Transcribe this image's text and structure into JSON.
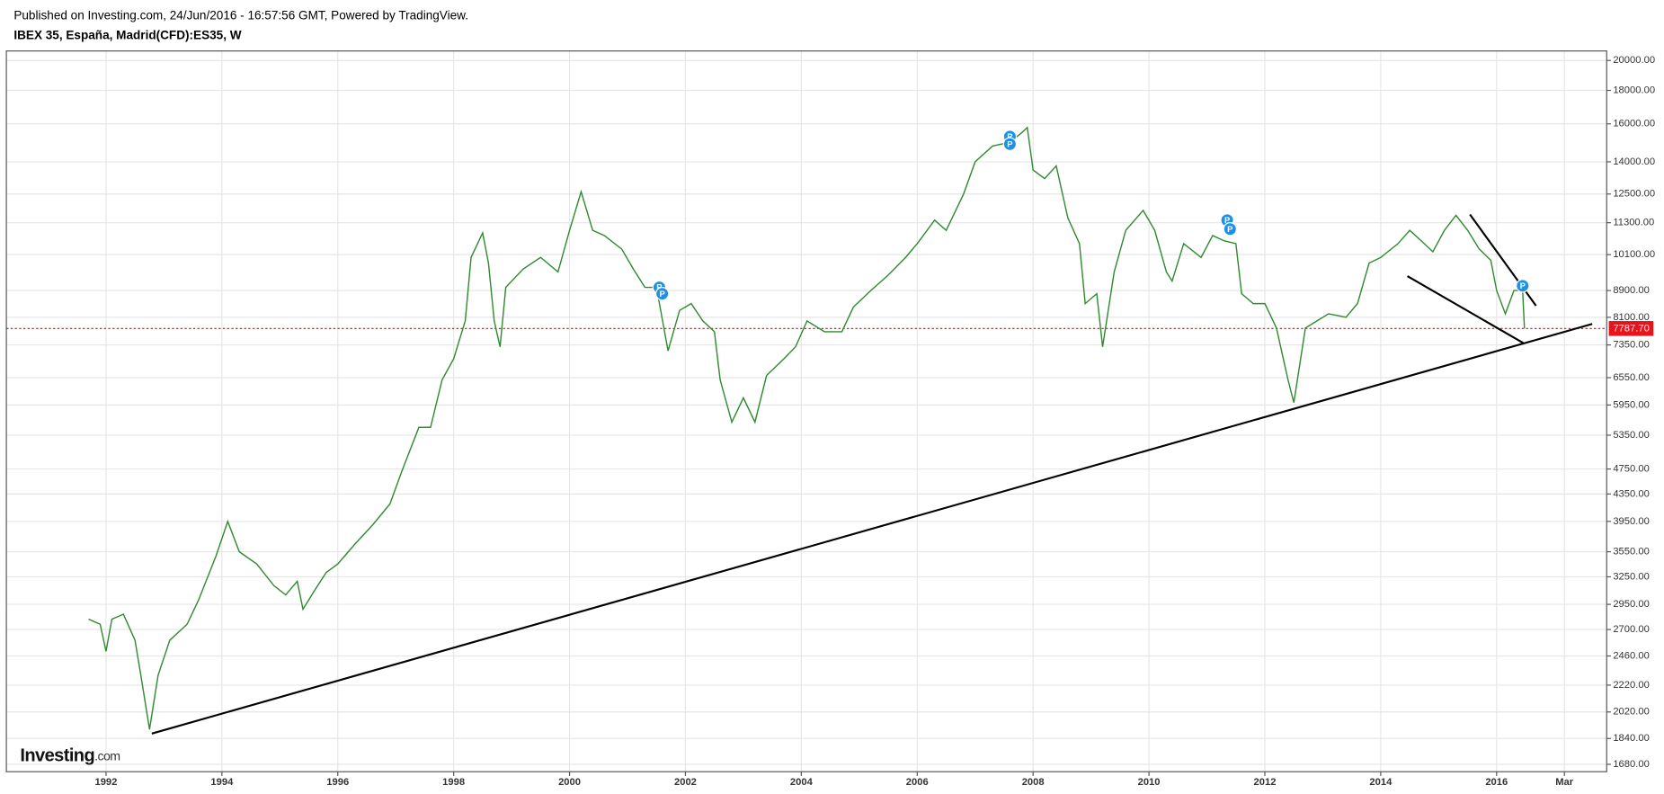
{
  "chart_data": {
    "type": "line",
    "source": "Published on Investing.com, 24/Jun/2016 - 16:57:56 GMT, Powered by TradingView.",
    "title": "IBEX 35, España, Madrid(CFD):ES35, W",
    "logo": "Investing",
    "logo_suffix": ".com",
    "log_y": true,
    "grid": true,
    "xlim": [
      1990.28,
      2017.9
    ],
    "xticks": [
      1992,
      1994,
      1996,
      1998,
      2000,
      2002,
      2004,
      2006,
      2008,
      2010,
      2012,
      2014,
      2016,
      {
        "value": 2017.17,
        "label": "Mar"
      }
    ],
    "ylim": [
      1637,
      20680
    ],
    "yticks": [
      {
        "value": 1680,
        "label": "1680.00"
      },
      {
        "value": 1840,
        "label": "1840.00"
      },
      {
        "value": 2020,
        "label": "2020.00"
      },
      {
        "value": 2220,
        "label": "2220.00"
      },
      {
        "value": 2460,
        "label": "2460.00"
      },
      {
        "value": 2700,
        "label": "2700.00"
      },
      {
        "value": 2950,
        "label": "2950.00"
      },
      {
        "value": 3250,
        "label": "3250.00"
      },
      {
        "value": 3550,
        "label": "3550.00"
      },
      {
        "value": 3950,
        "label": "3950.00"
      },
      {
        "value": 4350,
        "label": "4350.00"
      },
      {
        "value": 4750,
        "label": "4750.00"
      },
      {
        "value": 5350,
        "label": "5350.00"
      },
      {
        "value": 5950,
        "label": "5950.00"
      },
      {
        "value": 6550,
        "label": "6550.00"
      },
      {
        "value": 7350,
        "label": "7350.00"
      },
      {
        "value": 8100,
        "label": "8100.00"
      },
      {
        "value": 8900,
        "label": "8900.00"
      },
      {
        "value": 10100,
        "label": "10100.00"
      },
      {
        "value": 11300,
        "label": "11300.00"
      },
      {
        "value": 12500,
        "label": "12500.00"
      },
      {
        "value": 14000,
        "label": "14000.00"
      },
      {
        "value": 16000,
        "label": "16000.00"
      },
      {
        "value": 18000,
        "label": "18000.00"
      },
      {
        "value": 20000,
        "label": "20000.00"
      }
    ],
    "x": [
      1991.7,
      1991.9,
      1992.0,
      1992.1,
      1992.3,
      1992.5,
      1992.6,
      1992.75,
      1992.9,
      1993.1,
      1993.4,
      1993.6,
      1993.9,
      1994.1,
      1994.3,
      1994.6,
      1994.9,
      1995.1,
      1995.3,
      1995.4,
      1995.6,
      1995.8,
      1996.0,
      1996.3,
      1996.6,
      1996.9,
      1997.1,
      1997.4,
      1997.6,
      1997.8,
      1998.0,
      1998.2,
      1998.3,
      1998.5,
      1998.6,
      1998.7,
      1998.8,
      1998.9,
      1999.2,
      1999.5,
      1999.8,
      2000.0,
      2000.2,
      2000.4,
      2000.6,
      2000.9,
      2001.1,
      2001.3,
      2001.5,
      2001.7,
      2001.9,
      2002.1,
      2002.3,
      2002.5,
      2002.6,
      2002.8,
      2003.0,
      2003.2,
      2003.4,
      2003.7,
      2003.9,
      2004.1,
      2004.4,
      2004.7,
      2004.9,
      2005.2,
      2005.5,
      2005.8,
      2006.0,
      2006.3,
      2006.5,
      2006.8,
      2007.0,
      2007.3,
      2007.6,
      2007.8,
      2007.9,
      2008.0,
      2008.2,
      2008.4,
      2008.6,
      2008.8,
      2008.9,
      2009.1,
      2009.2,
      2009.4,
      2009.6,
      2009.9,
      2010.1,
      2010.3,
      2010.4,
      2010.6,
      2010.9,
      2011.1,
      2011.3,
      2011.5,
      2011.6,
      2011.8,
      2012.0,
      2012.2,
      2012.4,
      2012.5,
      2012.7,
      2012.9,
      2013.1,
      2013.4,
      2013.6,
      2013.8,
      2014.0,
      2014.3,
      2014.5,
      2014.7,
      2014.9,
      2015.1,
      2015.3,
      2015.5,
      2015.7,
      2015.9,
      2016.0,
      2016.15,
      2016.3,
      2016.45,
      2016.48
    ],
    "series": [
      {
        "name": "IBEX 35",
        "color": "#2e8b2e",
        "values": [
          2800,
          2750,
          2500,
          2800,
          2850,
          2600,
          2300,
          1900,
          2300,
          2600,
          2750,
          3000,
          3500,
          3950,
          3550,
          3400,
          3150,
          3050,
          3200,
          2900,
          3100,
          3300,
          3400,
          3650,
          3900,
          4200,
          4700,
          5500,
          5500,
          6500,
          7000,
          8000,
          10000,
          10900,
          9800,
          8000,
          7300,
          9000,
          9600,
          10000,
          9500,
          11000,
          12600,
          11000,
          10800,
          10300,
          9600,
          9000,
          9000,
          7200,
          8300,
          8500,
          8000,
          7700,
          6500,
          5600,
          6100,
          5600,
          6600,
          7000,
          7300,
          8000,
          7700,
          7700,
          8400,
          8900,
          9400,
          10000,
          10500,
          11400,
          11000,
          12500,
          14000,
          14800,
          15000,
          15500,
          15800,
          13600,
          13200,
          13800,
          11500,
          10500,
          8500,
          8800,
          7300,
          9500,
          11000,
          11800,
          11000,
          9500,
          9200,
          10500,
          10000,
          10800,
          10600,
          10500,
          8800,
          8500,
          8500,
          7800,
          6500,
          6000,
          7800,
          8000,
          8200,
          8100,
          8500,
          9800,
          10000,
          10500,
          11000,
          10600,
          10200,
          11000,
          11600,
          11000,
          10300,
          9900,
          8900,
          8200,
          8900,
          8900,
          7788
        ]
      }
    ],
    "last_price": {
      "value": 7787.7,
      "label": "7787.70"
    },
    "trendlines": [
      {
        "x": [
          1992.79,
          2017.65
        ],
        "y": [
          1872,
          7914
        ]
      },
      {
        "x": [
          2014.46,
          2016.46
        ],
        "y": [
          9364,
          7400
        ]
      },
      {
        "x": [
          2015.54,
          2016.68
        ],
        "y": [
          11633,
          8437
        ]
      }
    ],
    "markers": [
      {
        "x": 2001.55,
        "y": 9000,
        "label": "P"
      },
      {
        "x": 2001.6,
        "y": 8800,
        "label": "P"
      },
      {
        "x": 2007.6,
        "y": 15300,
        "label": "P"
      },
      {
        "x": 2007.6,
        "y": 14900,
        "label": "P"
      },
      {
        "x": 2011.35,
        "y": 11400,
        "label": "P"
      },
      {
        "x": 2011.4,
        "y": 11050,
        "label": "P"
      },
      {
        "x": 2016.45,
        "y": 9050,
        "label": "P"
      }
    ]
  }
}
